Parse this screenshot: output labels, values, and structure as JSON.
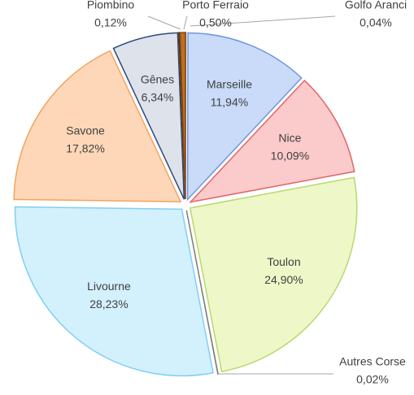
{
  "chart_data": {
    "type": "pie",
    "categories": [
      "Golfo Aranci",
      "Marseille",
      "Nice",
      "Toulon",
      "Autres Corse",
      "Livourne",
      "Savone",
      "Gênes",
      "Piombino",
      "Porto Ferraio"
    ],
    "values": [
      0.04,
      11.94,
      10.09,
      24.9,
      0.02,
      28.23,
      17.82,
      6.34,
      0.12,
      0.5
    ],
    "value_labels": [
      "0,04%",
      "11,94%",
      "10,09%",
      "24,90%",
      "0,02%",
      "28,23%",
      "17,82%",
      "6,34%",
      "0,12%",
      "0,50%"
    ],
    "colors": [
      "#a6a6a6",
      "#c9dbf8",
      "#fbcaca",
      "#eef7c8",
      "#a6a6a6",
      "#d3f0fd",
      "#fdd7b8",
      "#dde2eb",
      "#7b4a1c",
      "#c0701f"
    ],
    "border_colors": [
      "#7f7f7f",
      "#6f97e0",
      "#e06666",
      "#b8d96e",
      "#7f7f7f",
      "#80cff3",
      "#f4a35d",
      "#2f4a7c",
      "#5a3210",
      "#8a4d12"
    ]
  }
}
